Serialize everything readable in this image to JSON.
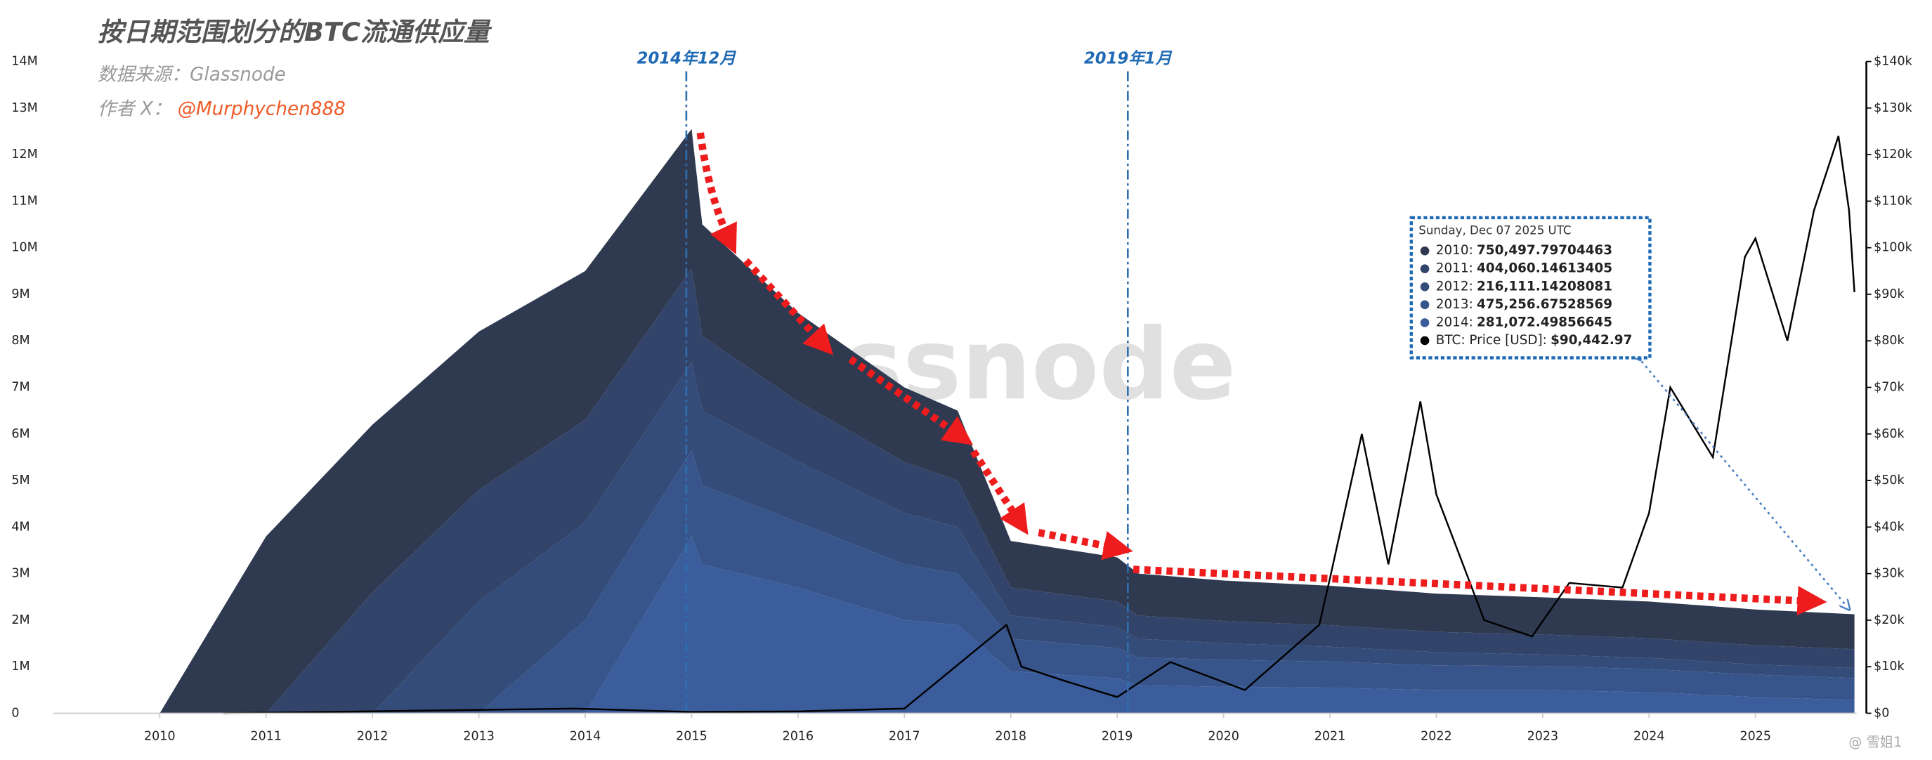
{
  "chart_data": {
    "type": "stacked-area",
    "title": "按日期范围划分的BTC流通供应量",
    "source": "数据来源：Glassnode",
    "author_prefix": "作者 X：",
    "author": "@Murphychen888",
    "watermark": "glassnode",
    "corner_note": "@ 雪姐1",
    "annotations": [
      {
        "x": 2014.95,
        "label": "2014年12月"
      },
      {
        "x": 2019.1,
        "label": "2019年1月"
      }
    ],
    "x": [
      2010,
      2011,
      2012,
      2013,
      2014,
      2015,
      2015.1,
      2016,
      2017,
      2017.5,
      2018,
      2019,
      2019.2,
      2020,
      2021,
      2022,
      2023,
      2024,
      2025,
      2025.93
    ],
    "series": [
      {
        "name": "2010",
        "color": "#2f3a51",
        "values": [
          0,
          3800000,
          3600000,
          3400000,
          3200000,
          3000000,
          2400000,
          1900000,
          1600000,
          1500000,
          1000000,
          950000,
          900000,
          870000,
          850000,
          820000,
          800000,
          790000,
          770000,
          750497.79704463
        ]
      },
      {
        "name": "2011",
        "color": "#32446a",
        "values": [
          0,
          0,
          2600000,
          2400000,
          2200000,
          2000000,
          1600000,
          1300000,
          1100000,
          1000000,
          600000,
          550000,
          500000,
          480000,
          460000,
          440000,
          430000,
          420000,
          410000,
          404060.14613405
        ]
      },
      {
        "name": "2012",
        "color": "#344c7a",
        "values": [
          0,
          0,
          0,
          2400000,
          2100000,
          1900000,
          1600000,
          1300000,
          1100000,
          1000000,
          500000,
          450000,
          400000,
          350000,
          320000,
          280000,
          250000,
          240000,
          220000,
          216111.14208081
        ]
      },
      {
        "name": "2013",
        "color": "#37558b",
        "values": [
          0,
          0,
          0,
          0,
          2000000,
          1850000,
          1700000,
          1400000,
          1200000,
          1100000,
          700000,
          650000,
          600000,
          580000,
          560000,
          530000,
          510000,
          500000,
          480000,
          475256.67528569
        ]
      },
      {
        "name": "2014",
        "color": "#3b5d9c",
        "values": [
          0,
          0,
          0,
          0,
          0,
          3800000,
          3200000,
          2700000,
          2000000,
          1900000,
          900000,
          750000,
          600000,
          570000,
          550000,
          500000,
          500000,
          450000,
          350000,
          281072.49856645
        ]
      },
      {
        "name": "BTC: Price [USD]",
        "type": "line",
        "axis": "y2",
        "color": "#000000",
        "x": [
          2010.6,
          2013.9,
          2014.5,
          2015,
          2016,
          2017,
          2017.96,
          2018.1,
          2018.5,
          2019.0,
          2019.5,
          2020.2,
          2020.9,
          2021.0,
          2021.3,
          2021.55,
          2021.85,
          2022.0,
          2022.45,
          2022.9,
          2023.25,
          2023.75,
          2024.0,
          2024.2,
          2024.6,
          2024.9,
          2025.0,
          2025.3,
          2025.55,
          2025.78,
          2025.88,
          2025.93
        ],
        "values": [
          0,
          1000,
          600,
          300,
          400,
          1000,
          19000,
          10000,
          7000,
          3500,
          11000,
          5000,
          19000,
          29000,
          60000,
          32000,
          67000,
          47000,
          20000,
          16500,
          28000,
          27000,
          43000,
          70000,
          55000,
          98000,
          102000,
          80000,
          108000,
          124000,
          108000,
          90442.97
        ]
      }
    ],
    "xlim": [
      2009,
      2025.95
    ],
    "xticks": [
      2010,
      2011,
      2012,
      2013,
      2014,
      2015,
      2016,
      2017,
      2018,
      2019,
      2020,
      2021,
      2022,
      2023,
      2024,
      2025
    ],
    "ylim": [
      0,
      14000000
    ],
    "yticks": [
      0,
      {
        "value": 1000000,
        "label": "1M"
      },
      {
        "value": 2000000,
        "label": "2M"
      },
      {
        "value": 3000000,
        "label": "3M"
      },
      {
        "value": 4000000,
        "label": "4M"
      },
      {
        "value": 5000000,
        "label": "5M"
      },
      {
        "value": 6000000,
        "label": "6M"
      },
      {
        "value": 7000000,
        "label": "7M"
      },
      {
        "value": 8000000,
        "label": "8M"
      },
      {
        "value": 9000000,
        "label": "9M"
      },
      {
        "value": 10000000,
        "label": "10M"
      },
      {
        "value": 11000000,
        "label": "11M"
      },
      {
        "value": 12000000,
        "label": "12M"
      },
      {
        "value": 13000000,
        "label": "13M"
      },
      {
        "value": 14000000,
        "label": "14M"
      }
    ],
    "y2lim": [
      0,
      140000
    ],
    "y2ticks": [
      {
        "value": 0,
        "label": "$0"
      },
      {
        "value": 10000,
        "label": "$10k"
      },
      {
        "value": 20000,
        "label": "$20k"
      },
      {
        "value": 30000,
        "label": "$30k"
      },
      {
        "value": 40000,
        "label": "$40k"
      },
      {
        "value": 50000,
        "label": "$50k"
      },
      {
        "value": 60000,
        "label": "$60k"
      },
      {
        "value": 70000,
        "label": "$70k"
      },
      {
        "value": 80000,
        "label": "$80k"
      },
      {
        "value": 90000,
        "label": "$90k"
      },
      {
        "value": 100000,
        "label": "$100k"
      },
      {
        "value": 110000,
        "label": "$110k"
      },
      {
        "value": 120000,
        "label": "$120k"
      },
      {
        "value": 130000,
        "label": "$130k"
      },
      {
        "value": 140000,
        "label": "$140k"
      }
    ],
    "tooltip": {
      "date": "Sunday, Dec 07 2025 UTC",
      "rows": [
        {
          "label": "2010:",
          "value": "750,497.79704463"
        },
        {
          "label": "2011:",
          "value": "404,060.14613405"
        },
        {
          "label": "2012:",
          "value": "216,111.14208081"
        },
        {
          "label": "2013:",
          "value": "475,256.67528569"
        },
        {
          "label": "2014:",
          "value": "281,072.49856645"
        },
        {
          "label": "BTC: Price [USD]:",
          "value": "$90,442.97"
        }
      ]
    }
  }
}
